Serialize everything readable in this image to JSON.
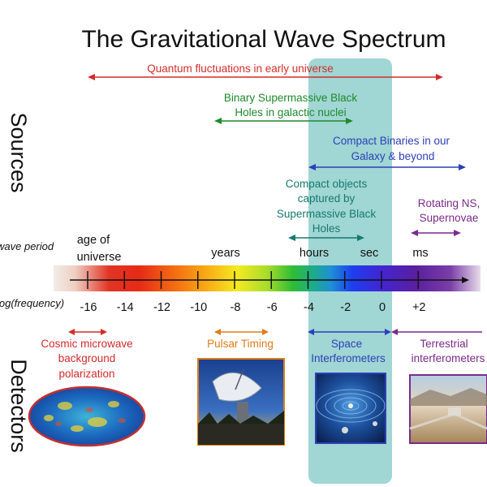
{
  "title": "The Gravitational Wave Spectrum",
  "side_labels": {
    "sources": "Sources",
    "detectors": "Detectors"
  },
  "axis": {
    "period_label": "wave period",
    "frequency_label": "log(frequency)",
    "ticks": [
      "-16",
      "-14",
      "-12",
      "-10",
      "-8",
      "-6",
      "-4",
      "-2",
      "0",
      "+2"
    ],
    "period_labels": {
      "age_line1": "age of",
      "age_line2": "universe",
      "years": "years",
      "hours": "hours",
      "sec": "sec",
      "ms": "ms"
    }
  },
  "sources": {
    "quantum": "Quantum fluctuations in early universe",
    "smbh_line1": "Binary Supermassive Black",
    "smbh_line2": "Holes in galactic nuclei",
    "compact_line1": "Compact Binaries in our",
    "compact_line2": "Galaxy & beyond",
    "captured_line1": "Compact objects",
    "captured_line2": "captured by",
    "captured_line3": "Supermassive Black",
    "captured_line4": "Holes",
    "rotating_line1": "Rotating NS,",
    "rotating_line2": "Supernovae"
  },
  "detectors": {
    "cmb_line1": "Cosmic microwave",
    "cmb_line2": "background",
    "cmb_line3": "polarization",
    "pulsar": "Pulsar Timing",
    "space_line1": "Space",
    "space_line2": "Interferometers",
    "terrestrial_line1": "Terrestrial",
    "terrestrial_line2": "interferometers"
  },
  "colors": {
    "quantum": "#d42b2b",
    "smbh": "#1f8a2c",
    "compact": "#2d3fb8",
    "captured": "#167a6e",
    "rotating": "#7a2a8c",
    "cmb": "#d42b2b",
    "pulsar": "#e07b1a",
    "space": "#2d3fb8",
    "terrestrial": "#7a2a8c",
    "highlight": "#8fcfcc"
  }
}
